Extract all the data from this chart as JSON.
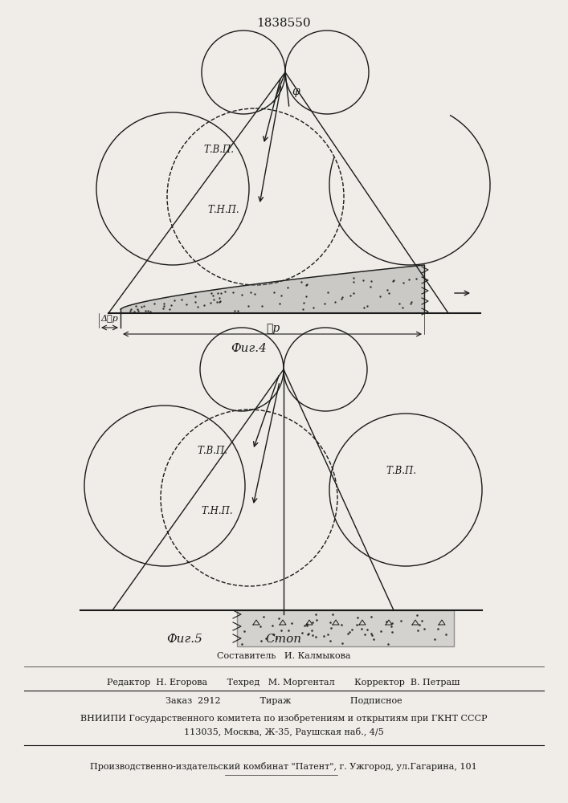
{
  "patent_number": "1838550",
  "fig4_label": "Фиг.4",
  "fig5_label": "Фиг.5",
  "stop_label": "Стоп",
  "tvp_label": "Т.В.П.",
  "tnp_label": "Т.Н.П.",
  "phi_label": "φ",
  "lp_label": "ℓр",
  "dlp_label": "Δℓр",
  "footer_line1": "Составитель   И. Калмыкова",
  "footer_line2": "Редактор  Н. Егорова       Техред   М. Моргентал       Корректор  В. Петраш",
  "footer_line3": "Заказ  2912              Тираж                     Подписное",
  "footer_line4": "ВНИИПИ Государственного комитета по изобретениям и открытиям при ГКНТ СССР",
  "footer_line5": "113035, Москва, Ж-35, Раушская наб., 4/5",
  "footer_line6": "Производственно-издательский комбинат \"Патент\", г. Ужгород, ул.Гагарина, 101",
  "bg_color": "#f0ede8",
  "line_color": "#1a1a1a"
}
